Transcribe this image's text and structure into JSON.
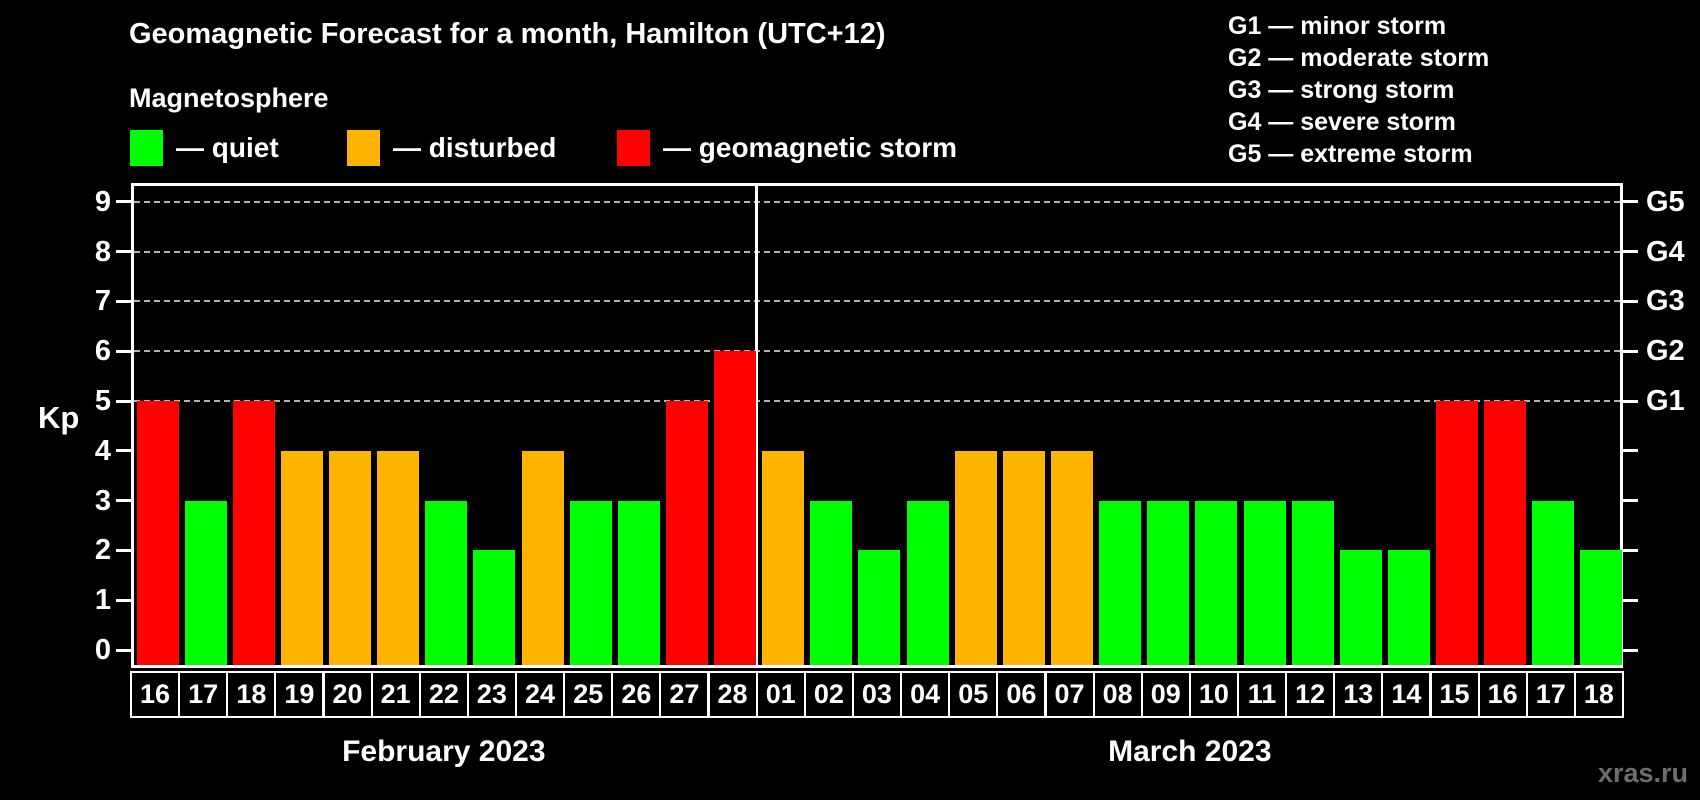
{
  "title": "Geomagnetic Forecast for a month, Hamilton (UTC+12)",
  "subtitle": "Magnetosphere",
  "legend": {
    "items": [
      {
        "label": "— quiet",
        "status": "quiet",
        "color": "#00ff00"
      },
      {
        "label": "— disturbed",
        "status": "disturbed",
        "color": "#ffb400"
      },
      {
        "label": "— geomagnetic storm",
        "status": "storm",
        "color": "#ff0000"
      }
    ]
  },
  "g_legend": {
    "items": [
      "G1 — minor storm",
      "G2 — moderate storm",
      "G3 — strong storm",
      "G4 — severe storm",
      "G5 — extreme storm"
    ]
  },
  "axis": {
    "kp_label": "Kp"
  },
  "watermark": "xras.ru",
  "colors": {
    "background": "#000000",
    "text": "#ffffff",
    "grid": "#b3b3b3",
    "axis": "#ffffff",
    "watermark": "#6e6e6e"
  },
  "chart_data": {
    "type": "bar",
    "title": "Geomagnetic Forecast for a month, Hamilton (UTC+12)",
    "ylabel": "Kp",
    "ylim": [
      0,
      9
    ],
    "yticks": [
      0,
      1,
      2,
      3,
      4,
      5,
      6,
      7,
      8,
      9
    ],
    "grid": "horizontal dashed lines at Kp 5-9 only",
    "gridline_levels": [
      5,
      6,
      7,
      8,
      9
    ],
    "legend_position": "top-left",
    "right_axis_labels": [
      {
        "text": "G1",
        "kp": 5
      },
      {
        "text": "G2",
        "kp": 6
      },
      {
        "text": "G3",
        "kp": 7
      },
      {
        "text": "G4",
        "kp": 8
      },
      {
        "text": "G5",
        "kp": 9
      }
    ],
    "status_colors": {
      "quiet": "#00ff00",
      "disturbed": "#ffb400",
      "storm": "#ff0000"
    },
    "months": [
      {
        "label": "February 2023",
        "key": "feb",
        "days": [
          {
            "day": "16",
            "kp": 5,
            "status": "storm"
          },
          {
            "day": "17",
            "kp": 3,
            "status": "quiet"
          },
          {
            "day": "18",
            "kp": 5,
            "status": "storm"
          },
          {
            "day": "19",
            "kp": 4,
            "status": "disturbed"
          },
          {
            "day": "20",
            "kp": 4,
            "status": "disturbed"
          },
          {
            "day": "21",
            "kp": 4,
            "status": "disturbed"
          },
          {
            "day": "22",
            "kp": 3,
            "status": "quiet"
          },
          {
            "day": "23",
            "kp": 2,
            "status": "quiet"
          },
          {
            "day": "24",
            "kp": 4,
            "status": "disturbed"
          },
          {
            "day": "25",
            "kp": 3,
            "status": "quiet"
          },
          {
            "day": "26",
            "kp": 3,
            "status": "quiet"
          },
          {
            "day": "27",
            "kp": 5,
            "status": "storm"
          },
          {
            "day": "28",
            "kp": 6,
            "status": "storm"
          }
        ]
      },
      {
        "label": "March 2023",
        "key": "mar",
        "days": [
          {
            "day": "01",
            "kp": 4,
            "status": "disturbed"
          },
          {
            "day": "02",
            "kp": 3,
            "status": "quiet"
          },
          {
            "day": "03",
            "kp": 2,
            "status": "quiet"
          },
          {
            "day": "04",
            "kp": 3,
            "status": "quiet"
          },
          {
            "day": "05",
            "kp": 4,
            "status": "disturbed"
          },
          {
            "day": "06",
            "kp": 4,
            "status": "disturbed"
          },
          {
            "day": "07",
            "kp": 4,
            "status": "disturbed"
          },
          {
            "day": "08",
            "kp": 3,
            "status": "quiet"
          },
          {
            "day": "09",
            "kp": 3,
            "status": "quiet"
          },
          {
            "day": "10",
            "kp": 3,
            "status": "quiet"
          },
          {
            "day": "11",
            "kp": 3,
            "status": "quiet"
          },
          {
            "day": "12",
            "kp": 3,
            "status": "quiet"
          },
          {
            "day": "13",
            "kp": 2,
            "status": "quiet"
          },
          {
            "day": "14",
            "kp": 2,
            "status": "quiet"
          },
          {
            "day": "15",
            "kp": 5,
            "status": "storm"
          },
          {
            "day": "16",
            "kp": 5,
            "status": "storm"
          },
          {
            "day": "17",
            "kp": 3,
            "status": "quiet"
          },
          {
            "day": "18",
            "kp": 2,
            "status": "quiet"
          }
        ]
      }
    ]
  }
}
